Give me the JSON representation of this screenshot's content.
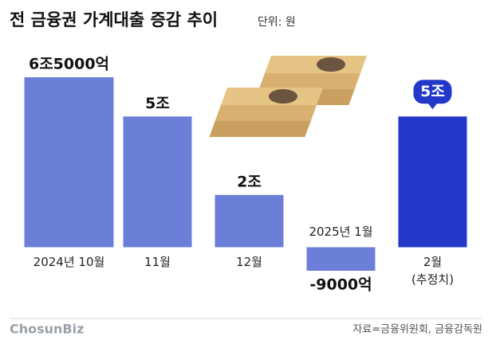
{
  "chart_data": {
    "type": "bar",
    "title": "전 금융권 가계대출 증감 추이",
    "subtitle": "단위: 원",
    "categories": [
      "2024년 10월",
      "11월",
      "12월",
      "2025년 1월",
      "2월\n(추정치)"
    ],
    "values": [
      65000,
      50000,
      20000,
      -9000,
      50000
    ],
    "value_labels": [
      "6조5000억",
      "5조",
      "2조",
      "-9000억",
      "5조"
    ],
    "colors": [
      "#6b7fd8",
      "#6b7fd8",
      "#6b7fd8",
      "#6b7fd8",
      "#2238c8"
    ],
    "ylim": [
      -9000,
      65000
    ],
    "source": "자료=금융위원회, 금융감독원",
    "logo": "ChosunBiz"
  }
}
